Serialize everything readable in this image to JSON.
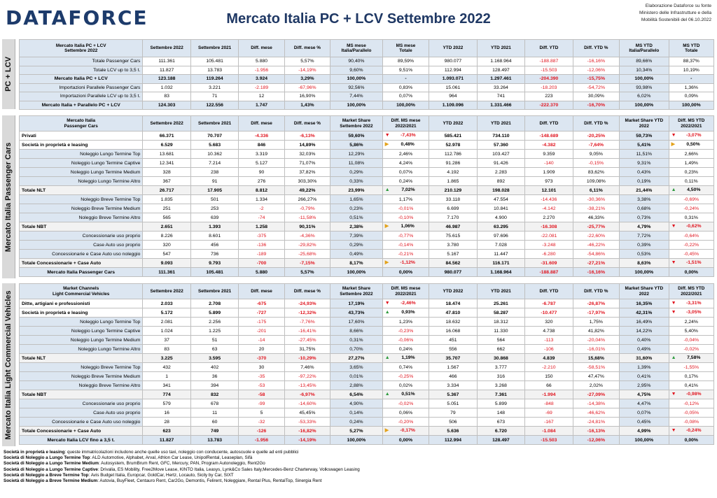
{
  "header": {
    "logo": "DATAFORCE",
    "title": "Mercato Italia PC + LCV Settembre 2022",
    "source_lines": [
      "Elaborazione Dataforce su fonte",
      "Ministero delle Infrastrutture e della",
      "Mobilità Sostenibili del 06.10.2022"
    ]
  },
  "colors": {
    "header_fill": "#dce6f1",
    "negative": "#e0141e",
    "up_arrow": "#2e9b3e",
    "down_arrow": "#e0141e",
    "side_arrow": "#e3a21a",
    "logo": "#1d3b6b"
  },
  "sections": [
    {
      "label": "PC + LCV",
      "headers": [
        "Mercato Italia PC + LCV\nSettembre 2022",
        "Settembre 2022",
        "Settembre 2021",
        "Diff. mese",
        "Diff. mese %",
        "MS mese\nItalia/Parallelo",
        "MS mese\nTotale",
        "YTD 2022",
        "YTD 2021",
        "Diff. YTD",
        "Diff. YTD %",
        "MS YTD\nItalia/Parallelo",
        "MS YTD\nTotale"
      ],
      "rows": [
        {
          "style": "sub",
          "cells": [
            "Totale Passenger Cars",
            "111.361",
            "105.481",
            "5.880",
            "5,57%",
            "90,40%",
            "89,59%",
            "980.077",
            "1.168.964",
            "-188.887",
            "-16,16%",
            "89,66%",
            "88,37%"
          ]
        },
        {
          "style": "sub",
          "cells": [
            "Totale LCV up to 3,5 t.",
            "11.827",
            "13.783",
            "-1.956",
            "-14,19%",
            "9,60%",
            "9,51%",
            "112.994",
            "128.497",
            "-15.503",
            "-12,06%",
            "10,34%",
            "10,19%"
          ]
        },
        {
          "style": "tot",
          "cells": [
            "Mercato Italia PC + LCV",
            "123.188",
            "119.264",
            "3.924",
            "3,29%",
            "100,00%",
            "-",
            "1.093.071",
            "1.297.461",
            "-204.390",
            "-15,75%",
            "100,00%",
            "-"
          ]
        },
        {
          "style": "sub",
          "cells": [
            "Importazioni Parallele Passenger Cars",
            "1.032",
            "3.221",
            "-2.189",
            "-67,96%",
            "92,56%",
            "0,83%",
            "15.061",
            "33.264",
            "-18.203",
            "-54,72%",
            "93,98%",
            "1,36%"
          ]
        },
        {
          "style": "sub",
          "cells": [
            "Importazioni Parallele LCV up to 3,5 t.",
            "83",
            "71",
            "12",
            "16,90%",
            "7,44%",
            "0,07%",
            "964",
            "741",
            "223",
            "30,09%",
            "6,02%",
            "0,09%"
          ]
        },
        {
          "style": "tot",
          "cells": [
            "Mercato Italia + Parallelo PC + LCV",
            "124.303",
            "122.556",
            "1.747",
            "1,43%",
            "100,00%",
            "100,00%",
            "1.109.096",
            "1.331.466",
            "-222.370",
            "-16,70%",
            "100,00%",
            "100,00%"
          ]
        }
      ]
    },
    {
      "label": "Mercato Italia Passenger Cars",
      "headers": [
        "Mercato Italia\nPassenger Cars",
        "Settembre 2022",
        "Settembre 2021",
        "Diff. mese",
        "Diff. mese %",
        "Market Share\nSettembre 2022",
        "Diff. MS mese\n2022/2021",
        "YTD 2022",
        "YTD 2021",
        "Diff. YTD",
        "Diff. YTD %",
        "Market Share YTD\n2022",
        "Diff. MS YTD\n2022/2021"
      ],
      "rows": [
        {
          "style": "main",
          "icons": [
            "down",
            "down"
          ],
          "cells": [
            "Privati",
            "66.371",
            "70.707",
            "-4.336",
            "-6,13%",
            "59,60%",
            "-7,43%",
            "585.421",
            "734.110",
            "-148.689",
            "-20,25%",
            "59,73%",
            "-3,07%"
          ]
        },
        {
          "style": "main",
          "icons": [
            "side",
            "side"
          ],
          "cells": [
            "Società in proprietà e leasing",
            "6.529",
            "5.683",
            "846",
            "14,89%",
            "5,86%",
            "0,48%",
            "52.978",
            "57.360",
            "-4.382",
            "-7,64%",
            "5,41%",
            "0,50%"
          ]
        },
        {
          "style": "sub",
          "cells": [
            "Noleggio Lungo Termine Top",
            "13.681",
            "10.362",
            "3.319",
            "32,03%",
            "12,29%",
            "2,46%",
            "112.786",
            "103.427",
            "9.359",
            "9,05%",
            "11,51%",
            "2,66%"
          ]
        },
        {
          "style": "sub",
          "cells": [
            "Noleggio Lungo Termine Captive",
            "12.341",
            "7.214",
            "5.127",
            "71,07%",
            "11,08%",
            "4,24%",
            "91.286",
            "91.426",
            "-140",
            "-0,15%",
            "9,31%",
            "1,49%"
          ]
        },
        {
          "style": "sub",
          "cells": [
            "Noleggio Lungo Termine Medium",
            "328",
            "238",
            "90",
            "37,82%",
            "0,29%",
            "0,07%",
            "4.192",
            "2.283",
            "1.909",
            "83,62%",
            "0,43%",
            "0,23%"
          ]
        },
        {
          "style": "sub",
          "cells": [
            "Noleggio Lungo Termine Altro",
            "367",
            "91",
            "276",
            "303,30%",
            "0,33%",
            "0,24%",
            "1.865",
            "892",
            "973",
            "109,08%",
            "0,19%",
            "0,11%"
          ]
        },
        {
          "style": "hdr",
          "icons": [
            "up",
            "up"
          ],
          "cells": [
            "Totale NLT",
            "26.717",
            "17.905",
            "8.812",
            "49,22%",
            "23,99%",
            "7,02%",
            "210.129",
            "198.028",
            "12.101",
            "6,11%",
            "21,44%",
            "4,50%"
          ]
        },
        {
          "style": "sub",
          "cells": [
            "Noleggio Breve Termine Top",
            "1.835",
            "501",
            "1.334",
            "266,27%",
            "1,65%",
            "1,17%",
            "33.118",
            "47.554",
            "-14.436",
            "-30,36%",
            "3,38%",
            "-0,69%"
          ]
        },
        {
          "style": "sub",
          "cells": [
            "Noleggio Breve Termine Medium",
            "251",
            "253",
            "-2",
            "-0,79%",
            "0,23%",
            "-0,01%",
            "6.699",
            "10.841",
            "-4.142",
            "-38,21%",
            "0,68%",
            "-0,24%"
          ]
        },
        {
          "style": "sub",
          "cells": [
            "Noleggio Breve Termine Altro",
            "565",
            "639",
            "-74",
            "-11,58%",
            "0,51%",
            "-0,10%",
            "7.170",
            "4.900",
            "2.270",
            "46,33%",
            "0,73%",
            "0,31%"
          ]
        },
        {
          "style": "hdr",
          "icons": [
            "side",
            "down"
          ],
          "cells": [
            "Totale NBT",
            "2.651",
            "1.393",
            "1.258",
            "90,31%",
            "2,38%",
            "1,06%",
            "46.987",
            "63.295",
            "-16.308",
            "-25,77%",
            "4,79%",
            "-0,62%"
          ]
        },
        {
          "style": "sub",
          "cells": [
            "Concessionarie uso proprio",
            "8.226",
            "8.601",
            "-375",
            "-4,36%",
            "7,39%",
            "-0,77%",
            "75.615",
            "97.696",
            "-22.081",
            "-22,60%",
            "7,72%",
            "-0,64%"
          ]
        },
        {
          "style": "sub",
          "cells": [
            "Case Auto uso proprio",
            "320",
            "456",
            "-136",
            "-29,82%",
            "0,29%",
            "-0,14%",
            "3.780",
            "7.028",
            "-3.248",
            "-46,22%",
            "0,39%",
            "-0,22%"
          ]
        },
        {
          "style": "sub",
          "cells": [
            "Concessionarie e Case Auto uso noleggio",
            "547",
            "736",
            "-189",
            "-25,68%",
            "0,49%",
            "-0,21%",
            "5.167",
            "11.447",
            "-6.280",
            "-54,86%",
            "0,53%",
            "-0,45%"
          ]
        },
        {
          "style": "hdr",
          "icons": [
            "side",
            "down"
          ],
          "cells": [
            "Totale Concessionarie + Case Auto",
            "9.093",
            "9.793",
            "-700",
            "-7,15%",
            "8,17%",
            "-1,12%",
            "84.562",
            "116.171",
            "-31.609",
            "-27,21%",
            "8,63%",
            "-1,51%"
          ]
        },
        {
          "style": "tot",
          "cells": [
            "Mercato Italia Passenger Cars",
            "111.361",
            "105.481",
            "5.880",
            "5,57%",
            "100,00%",
            "0,00%",
            "980.077",
            "1.168.964",
            "-188.887",
            "-16,16%",
            "100,00%",
            "0,00%"
          ]
        }
      ]
    },
    {
      "label": "Mercato Italia Light Commercial Vehicles",
      "headers": [
        "Market Channels\nLight Commercial Vehicles",
        "Settembre 2022",
        "Settembre 2021",
        "Diff. mese",
        "Diff. mese %",
        "Market Share\nSettembre 2022",
        "Diff. MS mese\n2022/2021",
        "YTD 2022",
        "YTD 2021",
        "Diff. YTD",
        "Diff. YTD %",
        "Market Share YTD\n2022",
        "Diff. MS YTD\n2022/2021"
      ],
      "rows": [
        {
          "style": "main",
          "icons": [
            "down",
            "down"
          ],
          "cells": [
            "Ditte, artigiani e professionisti",
            "2.033",
            "2.708",
            "-675",
            "-24,93%",
            "17,19%",
            "-2,46%",
            "18.474",
            "25.261",
            "-6.787",
            "-26,87%",
            "16,35%",
            "-3,31%"
          ]
        },
        {
          "style": "main",
          "icons": [
            "up",
            "down"
          ],
          "cells": [
            "Società in proprietà e leasing",
            "5.172",
            "5.899",
            "-727",
            "-12,32%",
            "43,73%",
            "0,93%",
            "47.810",
            "58.287",
            "-10.477",
            "-17,97%",
            "42,31%",
            "-3,05%"
          ]
        },
        {
          "style": "sub",
          "cells": [
            "Noleggio Lungo Termine Top",
            "2.081",
            "2.256",
            "-175",
            "-7,76%",
            "17,60%",
            "1,23%",
            "18.632",
            "18.312",
            "320",
            "1,75%",
            "16,49%",
            "2,24%"
          ]
        },
        {
          "style": "sub",
          "cells": [
            "Noleggio Lungo Termine Captive",
            "1.024",
            "1.225",
            "-201",
            "-16,41%",
            "8,66%",
            "-0,23%",
            "16.068",
            "11.330",
            "4.738",
            "41,82%",
            "14,22%",
            "5,40%"
          ]
        },
        {
          "style": "sub",
          "cells": [
            "Noleggio Lungo Termine Medium",
            "37",
            "51",
            "-14",
            "-27,45%",
            "0,31%",
            "-0,06%",
            "451",
            "564",
            "-113",
            "-20,04%",
            "0,40%",
            "-0,04%"
          ]
        },
        {
          "style": "sub",
          "cells": [
            "Noleggio Lungo Termine Altro",
            "83",
            "63",
            "20",
            "31,75%",
            "0,70%",
            "0,24%",
            "556",
            "662",
            "-106",
            "-16,01%",
            "0,49%",
            "-0,02%"
          ]
        },
        {
          "style": "hdr",
          "icons": [
            "up",
            "up"
          ],
          "cells": [
            "Totale NLT",
            "3.225",
            "3.595",
            "-370",
            "-10,29%",
            "27,27%",
            "1,19%",
            "35.707",
            "30.868",
            "4.839",
            "15,68%",
            "31,60%",
            "7,58%"
          ]
        },
        {
          "style": "sub",
          "cells": [
            "Noleggio Breve Termine Top",
            "432",
            "402",
            "30",
            "7,46%",
            "3,65%",
            "0,74%",
            "1.567",
            "3.777",
            "-2.210",
            "-58,51%",
            "1,39%",
            "-1,55%"
          ]
        },
        {
          "style": "sub",
          "cells": [
            "Noleggio Breve Termine Medium",
            "1",
            "36",
            "-35",
            "-97,22%",
            "0,01%",
            "-0,25%",
            "466",
            "316",
            "150",
            "47,47%",
            "0,41%",
            "0,17%"
          ]
        },
        {
          "style": "sub",
          "cells": [
            "Noleggio Breve Termine Altro",
            "341",
            "394",
            "-53",
            "-13,45%",
            "2,88%",
            "0,02%",
            "3.334",
            "3.268",
            "66",
            "2,02%",
            "2,95%",
            "0,41%"
          ]
        },
        {
          "style": "hdr",
          "icons": [
            "up",
            "down"
          ],
          "cells": [
            "Totale NBT",
            "774",
            "832",
            "-58",
            "-6,97%",
            "6,54%",
            "0,51%",
            "5.367",
            "7.361",
            "-1.994",
            "-27,09%",
            "4,75%",
            "-0,98%"
          ]
        },
        {
          "style": "sub",
          "cells": [
            "Concessionarie uso proprio",
            "579",
            "678",
            "-99",
            "-14,60%",
            "4,90%",
            "-0,02%",
            "5.051",
            "5.899",
            "-848",
            "-14,38%",
            "4,47%",
            "-0,12%"
          ]
        },
        {
          "style": "sub",
          "cells": [
            "Case Auto uso proprio",
            "16",
            "11",
            "5",
            "45,45%",
            "0,14%",
            "0,06%",
            "79",
            "148",
            "-69",
            "-46,62%",
            "0,07%",
            "-0,05%"
          ]
        },
        {
          "style": "sub",
          "cells": [
            "Concessionarie e Case Auto uso noleggio",
            "28",
            "60",
            "-32",
            "-53,33%",
            "0,24%",
            "-0,20%",
            "506",
            "673",
            "-167",
            "-24,81%",
            "0,45%",
            "-0,08%"
          ]
        },
        {
          "style": "hdr",
          "icons": [
            "side",
            "down"
          ],
          "cells": [
            "Totale Concessionarie + Case Auto",
            "623",
            "749",
            "-126",
            "-16,82%",
            "5,27%",
            "-0,17%",
            "5.636",
            "6.720",
            "-1.084",
            "-16,13%",
            "4,99%",
            "-0,24%"
          ]
        },
        {
          "style": "tot",
          "cells": [
            "Mercato Italia LCV fino a 3,5 t.",
            "11.827",
            "13.783",
            "-1.956",
            "-14,19%",
            "100,00%",
            "0,00%",
            "112.994",
            "128.497",
            "-15.503",
            "-12,06%",
            "100,00%",
            "0,00%"
          ]
        }
      ]
    }
  ],
  "footnotes": [
    {
      "title": "Società in proprietà e leasing",
      "text": ": queste immatricolazioni includono anche quelle uso taxi, noleggio con conducente, autoscuole e quelle ad enti pubblici"
    },
    {
      "title": "Società di Noleggio a Lungo Termine Top",
      "text": ": ALD Automotive, Alphabet, Arval, Athlon Car Lease, UnipolRental, Leaseplan, Sifà"
    },
    {
      "title": "Società di Noleggio a Lungo Termine Medium",
      "text": ": Autosystem, BrumBrum Rent, GFC, Mercury, PAN, Program Autonoleggio, Rent2Go"
    },
    {
      "title": "Società di Noleggio a Lungo Termine Captive",
      "text": ": Drivalia, ES Mobility, Free2Move Lease, KINTO Italia, Leasys, Lynk&Co Sales Italy,Mercedes-Benz Charterway, Volkswagen Leasing"
    },
    {
      "title": "Società di Noleggio a Breve Termine Top",
      "text": ": Avis Budget Italia, Europcar, GoldCar, Hertz, Locauto, Sicily by Car, SIXT"
    },
    {
      "title": "Società di Noleggio a Breve Termine Medium",
      "text": ": Autovia, BuyFleet, Centauro Rent, Car2Go, Demontis, Felirent, Noleggiare, Rental Plus, RentalTop, Sinergia Rent"
    }
  ]
}
